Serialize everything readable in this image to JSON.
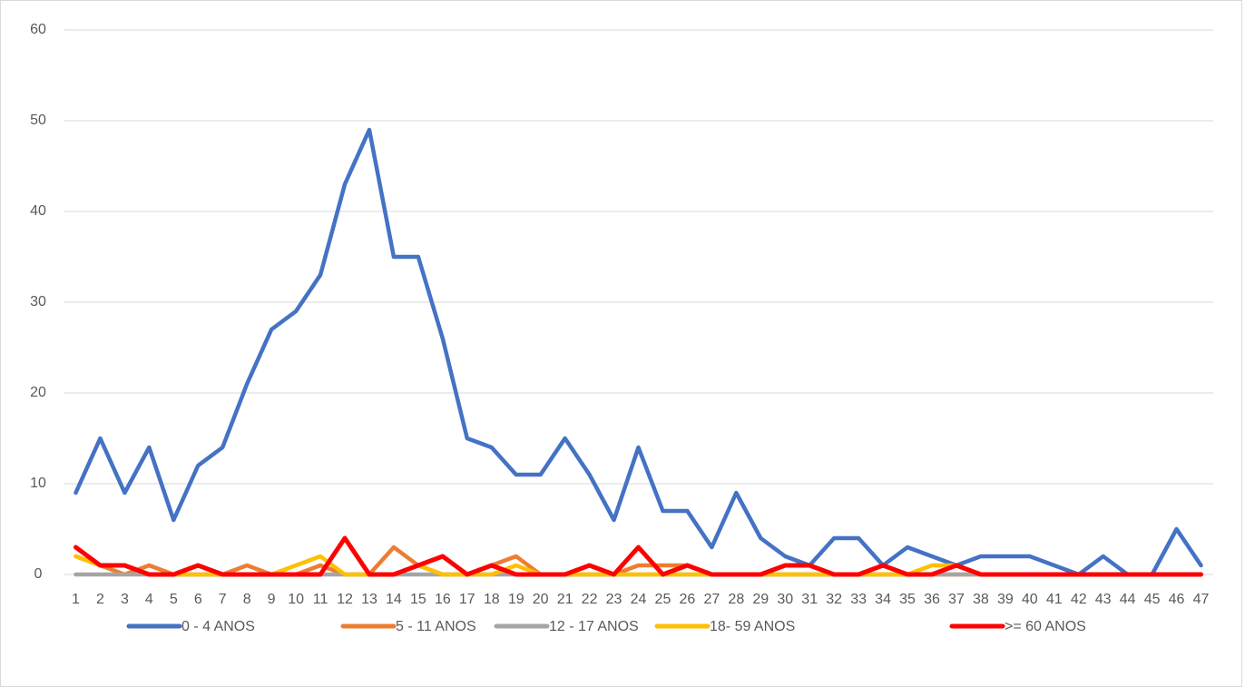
{
  "chart_data": {
    "type": "line",
    "categories": [
      1,
      2,
      3,
      4,
      5,
      6,
      7,
      8,
      9,
      10,
      11,
      12,
      13,
      14,
      15,
      16,
      17,
      18,
      19,
      20,
      21,
      22,
      23,
      24,
      25,
      26,
      27,
      28,
      29,
      30,
      31,
      32,
      33,
      34,
      35,
      36,
      37,
      38,
      39,
      40,
      41,
      42,
      43,
      44,
      45,
      46,
      47
    ],
    "series": [
      {
        "name": "0 - 4 ANOS",
        "color": "#4472c4",
        "values": [
          9,
          15,
          9,
          14,
          6,
          12,
          14,
          21,
          27,
          29,
          33,
          43,
          49,
          35,
          35,
          26,
          15,
          14,
          11,
          11,
          15,
          11,
          6,
          14,
          7,
          7,
          3,
          9,
          4,
          2,
          1,
          4,
          4,
          1,
          3,
          2,
          1,
          2,
          2,
          2,
          1,
          0,
          2,
          0,
          0,
          5,
          1
        ]
      },
      {
        "name": "5 - 11 ANOS",
        "color": "#ed7d31",
        "values": [
          2,
          1,
          0,
          1,
          0,
          0,
          0,
          1,
          0,
          0,
          1,
          0,
          0,
          3,
          1,
          0,
          0,
          1,
          2,
          0,
          0,
          0,
          0,
          1,
          1,
          1,
          0,
          0,
          0,
          0,
          0,
          0,
          0,
          0,
          0,
          0,
          0,
          0,
          0,
          0,
          0,
          0,
          0,
          0,
          0,
          0,
          0
        ]
      },
      {
        "name": "12 - 17 ANOS",
        "color": "#a5a5a5",
        "values": [
          0,
          0,
          0,
          0,
          0,
          0,
          0,
          0,
          0,
          0,
          0,
          0,
          0,
          0,
          0,
          0,
          0,
          0,
          0,
          0,
          0,
          0,
          0,
          0,
          0,
          0,
          0,
          0,
          0,
          0,
          0,
          0,
          0,
          0,
          0,
          0,
          0,
          0,
          0,
          0,
          0,
          0,
          0,
          0,
          0,
          0,
          0
        ]
      },
      {
        "name": "18- 59 ANOS",
        "color": "#ffc000",
        "values": [
          2,
          1,
          1,
          0,
          0,
          0,
          0,
          0,
          0,
          1,
          2,
          0,
          0,
          0,
          1,
          0,
          0,
          0,
          1,
          0,
          0,
          0,
          0,
          0,
          0,
          0,
          0,
          0,
          0,
          0,
          0,
          0,
          0,
          0,
          0,
          1,
          1,
          0,
          0,
          0,
          0,
          0,
          0,
          0,
          0,
          0,
          0
        ]
      },
      {
        "name": ">= 60 ANOS",
        "color": "#ff0000",
        "values": [
          3,
          1,
          1,
          0,
          0,
          1,
          0,
          0,
          0,
          0,
          0,
          4,
          0,
          0,
          1,
          2,
          0,
          1,
          0,
          0,
          0,
          1,
          0,
          3,
          0,
          1,
          0,
          0,
          0,
          1,
          1,
          0,
          0,
          1,
          0,
          0,
          1,
          0,
          0,
          0,
          0,
          0,
          0,
          0,
          0,
          0,
          0
        ]
      }
    ],
    "ylim": [
      0,
      60
    ],
    "yticks": [
      0,
      10,
      20,
      30,
      40,
      50,
      60
    ],
    "grid": true,
    "legend": "bottom"
  }
}
